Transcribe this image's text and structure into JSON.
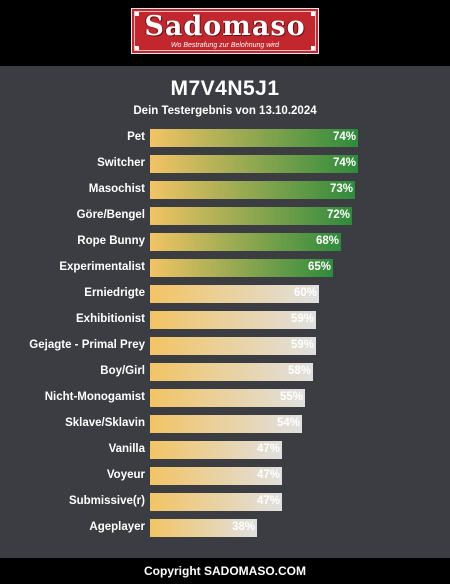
{
  "brand": {
    "name": "Sadomaso",
    "tagline": "Wo Bestrafung zur Belohnung wird",
    "color": "#c1272d"
  },
  "result": {
    "code": "M7V4N5J1",
    "subtitle": "Dein Testergebnis von 13.10.2024"
  },
  "colors": {
    "bar_start": "#f2c464",
    "green_end": "#2e8b3c",
    "light_end": "#e0e0e0"
  },
  "results": [
    {
      "label": "Pet",
      "percent": 74,
      "highlight": true
    },
    {
      "label": "Switcher",
      "percent": 74,
      "highlight": true
    },
    {
      "label": "Masochist",
      "percent": 73,
      "highlight": true
    },
    {
      "label": "Göre/Bengel",
      "percent": 72,
      "highlight": true
    },
    {
      "label": "Rope Bunny",
      "percent": 68,
      "highlight": true
    },
    {
      "label": "Experimentalist",
      "percent": 65,
      "highlight": true
    },
    {
      "label": "Erniedrigte",
      "percent": 60,
      "highlight": false
    },
    {
      "label": "Exhibitionist",
      "percent": 59,
      "highlight": false
    },
    {
      "label": "Gejagte - Primal Prey",
      "percent": 59,
      "highlight": false
    },
    {
      "label": "Boy/Girl",
      "percent": 58,
      "highlight": false
    },
    {
      "label": "Nicht-Monogamist",
      "percent": 55,
      "highlight": false
    },
    {
      "label": "Sklave/Sklavin",
      "percent": 54,
      "highlight": false
    },
    {
      "label": "Vanilla",
      "percent": 47,
      "highlight": false
    },
    {
      "label": "Voyeur",
      "percent": 47,
      "highlight": false
    },
    {
      "label": "Submissive(r)",
      "percent": 47,
      "highlight": false
    },
    {
      "label": "Ageplayer",
      "percent": 38,
      "highlight": false
    }
  ],
  "footer": {
    "copyright": "Copyright SADOMASO.COM"
  }
}
